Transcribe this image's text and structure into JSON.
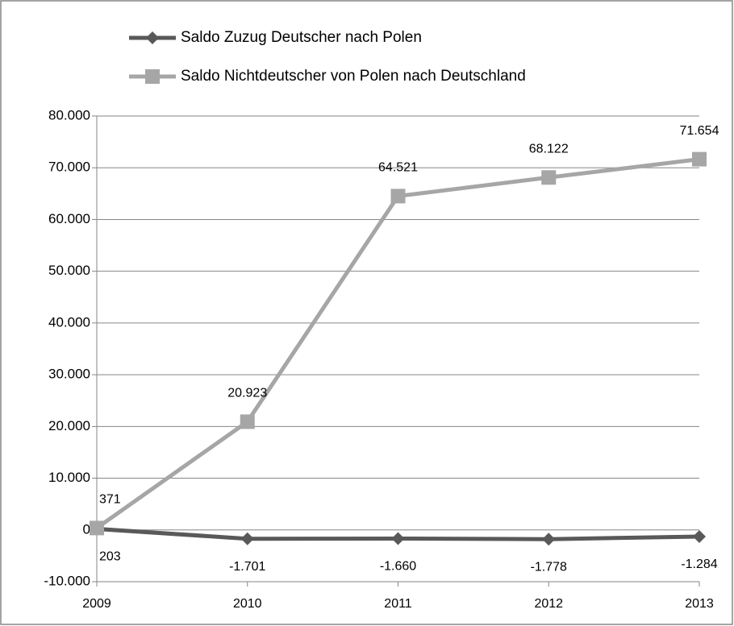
{
  "chart_data": {
    "type": "line",
    "categories": [
      "2009",
      "2010",
      "2011",
      "2012",
      "2013"
    ],
    "series": [
      {
        "name": "Saldo Zuzug Deutscher nach Polen",
        "color": "#595959",
        "marker": "diamond",
        "label_position": "below",
        "values": [
          203,
          -1701,
          -1660,
          -1778,
          -1284
        ],
        "value_labels": [
          "203",
          "-1.701",
          "-1.660",
          "-1.778",
          "-1.284"
        ]
      },
      {
        "name": "Saldo Nichtdeutscher von Polen nach Deutschland",
        "color": "#a6a6a6",
        "marker": "square",
        "label_position": "above",
        "values": [
          371,
          20923,
          64521,
          68122,
          71654
        ],
        "value_labels": [
          "371",
          "20.923",
          "64.521",
          "68.122",
          "71.654"
        ]
      }
    ],
    "ylim": [
      -10000,
      80000
    ],
    "yticks": [
      {
        "value": -10000,
        "label": "-10.000"
      },
      0,
      {
        "value": 10000,
        "label": "10.000"
      },
      {
        "value": 20000,
        "label": "20.000"
      },
      {
        "value": 30000,
        "label": "30.000"
      },
      {
        "value": 40000,
        "label": "40.000"
      },
      {
        "value": 50000,
        "label": "50.000"
      },
      {
        "value": 60000,
        "label": "60.000"
      },
      {
        "value": 70000,
        "label": "70.000"
      },
      {
        "value": 80000,
        "label": "80.000"
      }
    ],
    "grid": true,
    "legend": "top"
  }
}
